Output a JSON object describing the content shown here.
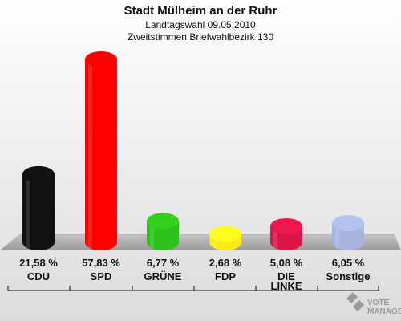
{
  "header": {
    "title": "Stadt Mülheim an der Ruhr",
    "subtitle1": "Landtagswahl 09.05.2010",
    "subtitle2": "Zweitstimmen Briefwahlbezirk 130"
  },
  "chart_data": {
    "type": "bar",
    "categories": [
      [
        "CDU"
      ],
      [
        "SPD"
      ],
      [
        "GRÜNE"
      ],
      [
        "FDP"
      ],
      [
        "DIE",
        "LINKE"
      ],
      [
        "Sonstige"
      ]
    ],
    "values": [
      21.58,
      57.83,
      6.77,
      2.68,
      5.08,
      6.05
    ],
    "value_labels": [
      "21,58 %",
      "57,83 %",
      "6,77 %",
      "2,68 %",
      "5,08 %",
      "6,05 %"
    ],
    "colors": [
      "#111111",
      "#ff0000",
      "#2ec11a",
      "#ffe81a",
      "#dc1548",
      "#a7b4dd"
    ],
    "ylim": [
      0,
      57.83
    ]
  },
  "logo": {
    "line1": "VOTE",
    "line2": "MANAGER"
  }
}
